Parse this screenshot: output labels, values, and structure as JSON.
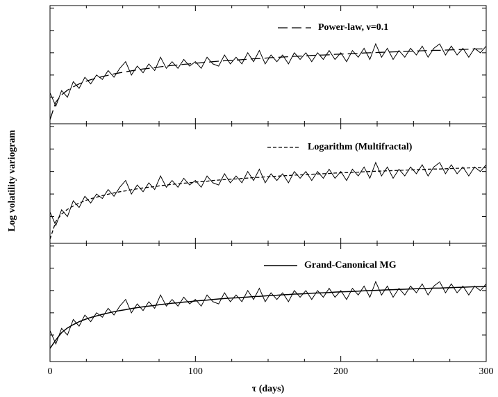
{
  "chart_data": [
    {
      "type": "line",
      "ylabel": "Log volatility variogram",
      "x": [
        0,
        4,
        8,
        12,
        16,
        20,
        24,
        28,
        32,
        36,
        40,
        44,
        48,
        52,
        56,
        60,
        64,
        68,
        72,
        76,
        80,
        84,
        88,
        92,
        96,
        100,
        104,
        108,
        112,
        116,
        120,
        124,
        128,
        132,
        136,
        140,
        144,
        148,
        152,
        156,
        160,
        164,
        168,
        172,
        176,
        180,
        184,
        188,
        192,
        196,
        200,
        204,
        208,
        212,
        216,
        220,
        224,
        228,
        232,
        236,
        240,
        244,
        248,
        252,
        256,
        260,
        264,
        268,
        272,
        276,
        280,
        284,
        288,
        292,
        296,
        300
      ],
      "series": [
        {
          "values": [
            1.2,
            0.6,
            1.3,
            1.0,
            1.7,
            1.4,
            1.9,
            1.6,
            2.0,
            1.8,
            2.2,
            1.9,
            2.3,
            2.6,
            2.0,
            2.4,
            2.1,
            2.5,
            2.2,
            2.8,
            2.3,
            2.6,
            2.3,
            2.7,
            2.4,
            2.6,
            2.3,
            2.8,
            2.5,
            2.4,
            2.9,
            2.5,
            2.8,
            2.5,
            3.0,
            2.6,
            3.1,
            2.5,
            2.9,
            2.6,
            2.9,
            2.5,
            3.0,
            2.7,
            3.0,
            2.6,
            3.0,
            2.7,
            3.1,
            2.7,
            3.0,
            2.6,
            3.1,
            2.8,
            3.2,
            2.7,
            3.4,
            2.8,
            3.2,
            2.7,
            3.1,
            2.8,
            3.2,
            2.9,
            3.3,
            2.8,
            3.2,
            3.4,
            2.9,
            3.3,
            2.9,
            3.2,
            2.8,
            3.2,
            3.0,
            3.3
          ],
          "linestyle": "solid",
          "width": 1
        },
        {
          "name": "Power-law, ν=0.1",
          "linestyle": "long-dash",
          "width": 1.3,
          "values": [
            0,
            0.78,
            1.11,
            1.32,
            1.47,
            1.6,
            1.7,
            1.79,
            1.86,
            1.93,
            1.99,
            2.05,
            2.1,
            2.14,
            2.19,
            2.23,
            2.27,
            2.3,
            2.33,
            2.37,
            2.4,
            2.43,
            2.45,
            2.48,
            2.5,
            2.53,
            2.55,
            2.57,
            2.6,
            2.62,
            2.64,
            2.66,
            2.67,
            2.69,
            2.71,
            2.73,
            2.74,
            2.76,
            2.78,
            2.79,
            2.81,
            2.82,
            2.84,
            2.85,
            2.86,
            2.88,
            2.89,
            2.9,
            2.91,
            2.93,
            2.94,
            2.95,
            2.96,
            2.97,
            2.99,
            3.0,
            3.01,
            3.02,
            3.03,
            3.04,
            3.05,
            3.06,
            3.07,
            3.08,
            3.09,
            3.1,
            3.11,
            3.11,
            3.12,
            3.13,
            3.14,
            3.15,
            3.16,
            3.17,
            3.17,
            3.18
          ]
        }
      ],
      "xlim": [
        0,
        300
      ],
      "xticks": [
        0,
        100,
        200,
        300
      ],
      "xminorticks": [
        25,
        50,
        75,
        125,
        150,
        175,
        225,
        250,
        275
      ],
      "ylim": [
        -0.19,
        5.12
      ],
      "yticks": [
        1,
        2,
        3,
        4,
        5
      ]
    },
    {
      "type": "line",
      "x": [
        0,
        4,
        8,
        12,
        16,
        20,
        24,
        28,
        32,
        36,
        40,
        44,
        48,
        52,
        56,
        60,
        64,
        68,
        72,
        76,
        80,
        84,
        88,
        92,
        96,
        100,
        104,
        108,
        112,
        116,
        120,
        124,
        128,
        132,
        136,
        140,
        144,
        148,
        152,
        156,
        160,
        164,
        168,
        172,
        176,
        180,
        184,
        188,
        192,
        196,
        200,
        204,
        208,
        212,
        216,
        220,
        224,
        228,
        232,
        236,
        240,
        244,
        248,
        252,
        256,
        260,
        264,
        268,
        272,
        276,
        280,
        284,
        288,
        292,
        296,
        300
      ],
      "series": [
        {
          "values": [
            1.2,
            0.6,
            1.3,
            1.0,
            1.7,
            1.4,
            1.9,
            1.6,
            2.0,
            1.8,
            2.2,
            1.9,
            2.3,
            2.6,
            2.0,
            2.4,
            2.1,
            2.5,
            2.2,
            2.8,
            2.3,
            2.6,
            2.3,
            2.7,
            2.4,
            2.6,
            2.3,
            2.8,
            2.5,
            2.4,
            2.9,
            2.5,
            2.8,
            2.5,
            3.0,
            2.6,
            3.1,
            2.5,
            2.9,
            2.6,
            2.9,
            2.5,
            3.0,
            2.7,
            3.0,
            2.6,
            3.0,
            2.7,
            3.1,
            2.7,
            3.0,
            2.6,
            3.1,
            2.8,
            3.2,
            2.7,
            3.4,
            2.8,
            3.2,
            2.7,
            3.1,
            2.8,
            3.2,
            2.9,
            3.3,
            2.8,
            3.2,
            3.4,
            2.9,
            3.3,
            2.9,
            3.2,
            2.8,
            3.2,
            3.0,
            3.3
          ],
          "linestyle": "solid",
          "width": 1
        },
        {
          "name": "Logarithm (Multifractal)",
          "linestyle": "short-dash",
          "width": 1.3,
          "values": [
            0,
            0.78,
            1.11,
            1.32,
            1.47,
            1.6,
            1.7,
            1.79,
            1.86,
            1.93,
            1.99,
            2.05,
            2.1,
            2.14,
            2.19,
            2.23,
            2.27,
            2.3,
            2.33,
            2.37,
            2.4,
            2.43,
            2.45,
            2.48,
            2.5,
            2.53,
            2.55,
            2.57,
            2.6,
            2.62,
            2.64,
            2.66,
            2.67,
            2.69,
            2.71,
            2.73,
            2.74,
            2.76,
            2.78,
            2.79,
            2.81,
            2.82,
            2.84,
            2.85,
            2.86,
            2.88,
            2.89,
            2.9,
            2.91,
            2.93,
            2.94,
            2.95,
            2.96,
            2.97,
            2.99,
            3.0,
            3.01,
            3.02,
            3.03,
            3.04,
            3.05,
            3.06,
            3.07,
            3.08,
            3.09,
            3.1,
            3.11,
            3.11,
            3.12,
            3.13,
            3.14,
            3.15,
            3.16,
            3.17,
            3.17,
            3.18
          ]
        }
      ],
      "xlim": [
        0,
        300
      ],
      "xticks": [
        0,
        100,
        200,
        300
      ],
      "xminorticks": [
        25,
        50,
        75,
        125,
        150,
        175,
        225,
        250,
        275
      ],
      "ylim": [
        -0.19,
        5.12
      ],
      "yticks": [
        1,
        2,
        3,
        4,
        5
      ]
    },
    {
      "type": "line",
      "xlabel": "τ (days)",
      "x": [
        0,
        4,
        8,
        12,
        16,
        20,
        24,
        28,
        32,
        36,
        40,
        44,
        48,
        52,
        56,
        60,
        64,
        68,
        72,
        76,
        80,
        84,
        88,
        92,
        96,
        100,
        104,
        108,
        112,
        116,
        120,
        124,
        128,
        132,
        136,
        140,
        144,
        148,
        152,
        156,
        160,
        164,
        168,
        172,
        176,
        180,
        184,
        188,
        192,
        196,
        200,
        204,
        208,
        212,
        216,
        220,
        224,
        228,
        232,
        236,
        240,
        244,
        248,
        252,
        256,
        260,
        264,
        268,
        272,
        276,
        280,
        284,
        288,
        292,
        296,
        300
      ],
      "series": [
        {
          "values": [
            1.2,
            0.6,
            1.3,
            1.0,
            1.7,
            1.4,
            1.9,
            1.6,
            2.0,
            1.8,
            2.2,
            1.9,
            2.3,
            2.6,
            2.0,
            2.4,
            2.1,
            2.5,
            2.2,
            2.8,
            2.3,
            2.6,
            2.3,
            2.7,
            2.4,
            2.6,
            2.3,
            2.8,
            2.5,
            2.4,
            2.9,
            2.5,
            2.8,
            2.5,
            3.0,
            2.6,
            3.1,
            2.5,
            2.9,
            2.6,
            2.9,
            2.5,
            3.0,
            2.7,
            3.0,
            2.6,
            3.0,
            2.7,
            3.1,
            2.7,
            3.0,
            2.6,
            3.1,
            2.8,
            3.2,
            2.7,
            3.4,
            2.8,
            3.2,
            2.7,
            3.1,
            2.8,
            3.2,
            2.9,
            3.3,
            2.8,
            3.2,
            3.4,
            2.9,
            3.3,
            2.9,
            3.2,
            2.8,
            3.2,
            3.0,
            3.3
          ],
          "linestyle": "solid",
          "width": 1
        },
        {
          "name": "Grand-Canonical MG",
          "linestyle": "solid",
          "width": 1.5,
          "values": [
            0.4,
            0.78,
            1.11,
            1.32,
            1.47,
            1.6,
            1.7,
            1.79,
            1.86,
            1.93,
            1.99,
            2.05,
            2.1,
            2.14,
            2.19,
            2.23,
            2.27,
            2.3,
            2.33,
            2.37,
            2.4,
            2.43,
            2.45,
            2.48,
            2.5,
            2.53,
            2.55,
            2.57,
            2.6,
            2.62,
            2.64,
            2.66,
            2.67,
            2.69,
            2.71,
            2.73,
            2.74,
            2.76,
            2.78,
            2.79,
            2.81,
            2.82,
            2.84,
            2.85,
            2.86,
            2.88,
            2.89,
            2.9,
            2.91,
            2.93,
            2.94,
            2.95,
            2.96,
            2.97,
            2.99,
            3.0,
            3.01,
            3.02,
            3.03,
            3.04,
            3.05,
            3.06,
            3.07,
            3.08,
            3.09,
            3.1,
            3.11,
            3.11,
            3.12,
            3.13,
            3.14,
            3.15,
            3.16,
            3.17,
            3.17,
            3.18
          ]
        }
      ],
      "xlim": [
        0,
        300
      ],
      "xticks": [
        0,
        100,
        200,
        300
      ],
      "xminorticks": [
        25,
        50,
        75,
        125,
        150,
        175,
        225,
        250,
        275
      ],
      "ylim": [
        -0.19,
        5.12
      ],
      "yticks": [
        1,
        2,
        3,
        4,
        5
      ]
    }
  ]
}
